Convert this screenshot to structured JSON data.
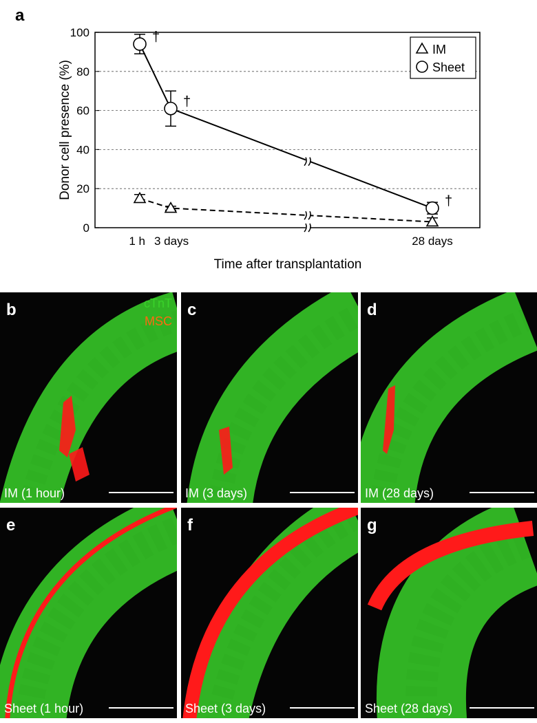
{
  "chart_data": {
    "type": "line",
    "panel_letter": "a",
    "ylabel": "Donor cell presence (%)",
    "xlabel": "Time after transplantation",
    "categories": [
      "1 h",
      "3 days",
      "28 days"
    ],
    "ylim": [
      0,
      100
    ],
    "yticks": [
      0,
      20,
      40,
      60,
      80,
      100
    ],
    "grid": true,
    "legend": "upper right",
    "series": [
      {
        "name": "IM",
        "color": "#000000",
        "marker": "triangle",
        "linestyle": "dashed",
        "values": [
          15,
          10,
          3
        ],
        "errors": [
          2,
          1,
          2
        ]
      },
      {
        "name": "Sheet",
        "color": "#000000",
        "marker": "circle",
        "linestyle": "solid",
        "values": [
          94,
          61,
          10
        ],
        "errors": [
          5,
          9,
          3
        ]
      }
    ],
    "annotations": [
      "†",
      "†",
      "†"
    ]
  },
  "stain_legend": [
    {
      "label": "cTnT",
      "color": "#3ad22a"
    },
    {
      "label": "MSC",
      "color": "#ff6a10"
    }
  ],
  "panels": [
    {
      "letter": "b",
      "caption": "IM (1 hour)"
    },
    {
      "letter": "c",
      "caption": "IM (3 days)"
    },
    {
      "letter": "d",
      "caption": "IM (28 days)"
    },
    {
      "letter": "e",
      "caption": "Sheet (1 hour)"
    },
    {
      "letter": "f",
      "caption": "Sheet (3 days)"
    },
    {
      "letter": "g",
      "caption": "Sheet (28 days)"
    }
  ]
}
